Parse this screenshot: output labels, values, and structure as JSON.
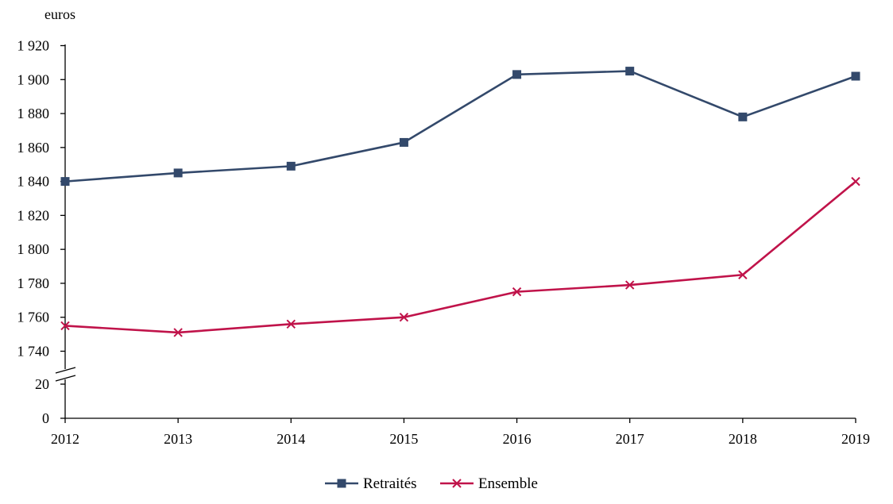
{
  "chart_data": {
    "type": "line",
    "unit_label": "euros",
    "x": [
      "2012",
      "2013",
      "2014",
      "2015",
      "2016",
      "2017",
      "2018",
      "2019"
    ],
    "y_ticks_upper": [
      "1 740",
      "1 760",
      "1 780",
      "1 800",
      "1 820",
      "1 840",
      "1 860",
      "1 880",
      "1 900",
      "1 920"
    ],
    "y_ticks_lower": [
      "0",
      "20"
    ],
    "y_tick_values_upper": [
      1740,
      1760,
      1780,
      1800,
      1820,
      1840,
      1860,
      1880,
      1900,
      1920
    ],
    "y_tick_values_lower": [
      0,
      20
    ],
    "axis_break": true,
    "grid": false,
    "legend_position": "bottom",
    "series": [
      {
        "name": "Retraités",
        "color": "#33496b",
        "marker": "square",
        "values": [
          1840,
          1845,
          1849,
          1863,
          1903,
          1905,
          1878,
          1902
        ]
      },
      {
        "name": "Ensemble",
        "color": "#c0134a",
        "marker": "x",
        "values": [
          1755,
          1751,
          1756,
          1760,
          1775,
          1779,
          1785,
          1840
        ]
      }
    ]
  }
}
